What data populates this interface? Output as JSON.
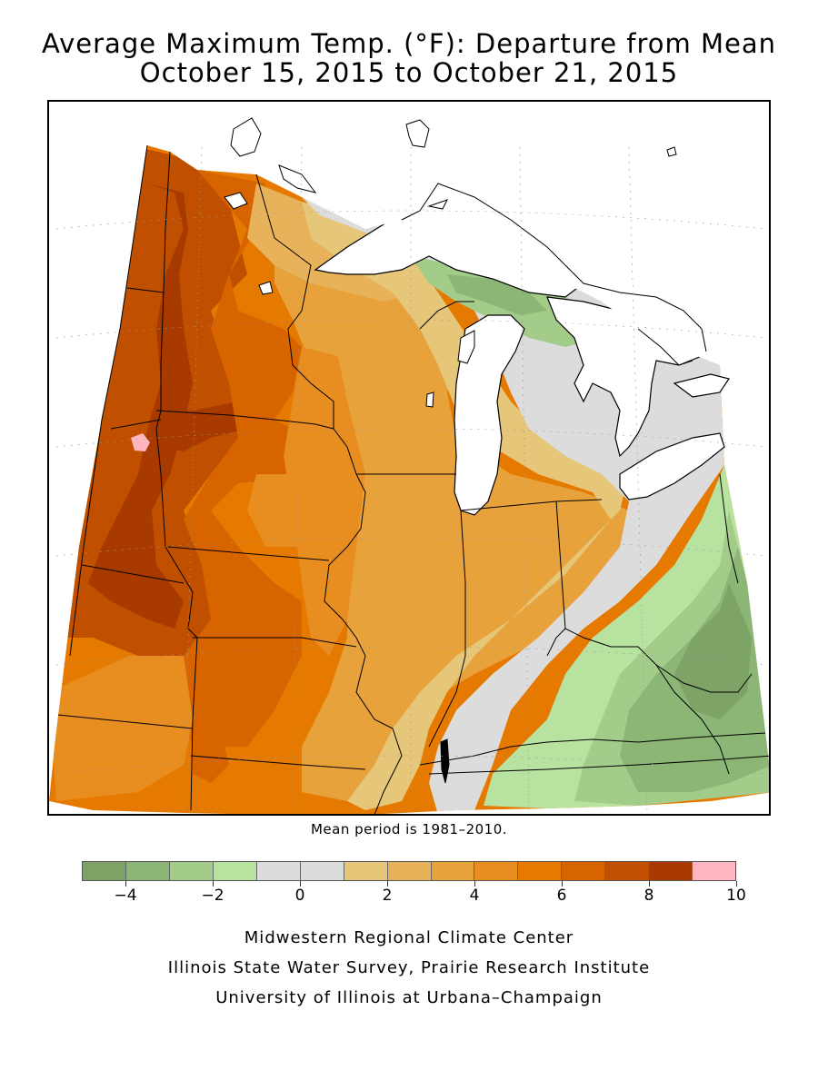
{
  "title": {
    "line1": "Average Maximum Temp. (°F): Departure from Mean",
    "line2": "October 15, 2015 to October 21, 2015"
  },
  "mean_note": "Mean period is 1981–2010.",
  "legend": {
    "colors": [
      "#7da366",
      "#8cb676",
      "#a3cc8a",
      "#b8e2a0",
      "#dcdcdc",
      "#dcdcdc",
      "#e6c679",
      "#e8b25a",
      "#e8a23c",
      "#e88d1f",
      "#e67a00",
      "#d86400",
      "#c05000",
      "#a83a00",
      "#ffb6c1"
    ],
    "ticks": [
      "−4",
      "−2",
      "0",
      "2",
      "4",
      "6",
      "8",
      "10"
    ]
  },
  "map": {
    "colors": {
      "pink": "#ffb6c1",
      "darkest_orange": "#a83a00",
      "dark_orange": "#c05000",
      "rust": "#d86400",
      "orange": "#e67a00",
      "mid_orange": "#e88d1f",
      "light_orange": "#e8a23c",
      "tan": "#e8b25a",
      "pale_tan": "#e6c679",
      "gray": "#dcdcdc",
      "light_green": "#b8e2a0",
      "green": "#a3cc8a",
      "mid_green": "#8cb676",
      "dark_green": "#7da366",
      "water": "#ffffff",
      "border": "#000000"
    }
  },
  "credits": {
    "line1": "Midwestern Regional Climate Center",
    "line2": "Illinois State Water Survey, Prairie Research Institute",
    "line3": "University of Illinois at Urbana–Champaign"
  }
}
